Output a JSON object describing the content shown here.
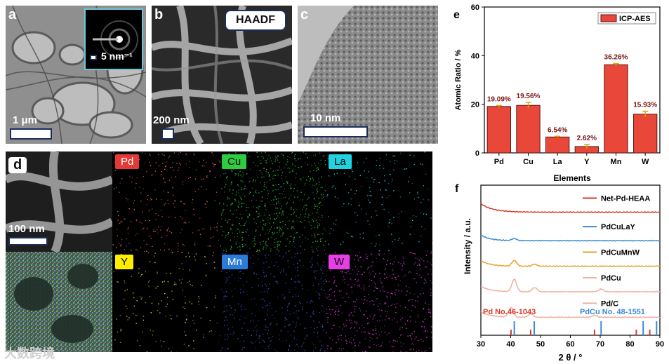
{
  "panels": {
    "a": {
      "label": "a",
      "scale": "1 μm",
      "inset_scale": "5 nm⁻¹"
    },
    "b": {
      "label": "b",
      "badge": "HAADF",
      "scale": "200 nm"
    },
    "c": {
      "label": "c",
      "scale": "10 nm"
    },
    "d": {
      "label": "d",
      "scale": "100 nm",
      "maps": [
        {
          "el": "Pd",
          "bg": "#e53935",
          "fg": "#ffffff",
          "dot": "#ff6a4d"
        },
        {
          "el": "Cu",
          "bg": "#2ecc40",
          "fg": "#000000",
          "dot": "#2ecc40"
        },
        {
          "el": "La",
          "bg": "#1fd3e0",
          "fg": "#000000",
          "dot": "#27d7e8"
        },
        {
          "el": "Y",
          "bg": "#ffee00",
          "fg": "#000000",
          "dot": "#f7e23b"
        },
        {
          "el": "Mn",
          "bg": "#2b7bd9",
          "fg": "#ffffff",
          "dot": "#3a5bdc"
        },
        {
          "el": "W",
          "bg": "#e83ee8",
          "fg": "#000000",
          "dot": "#e040e0"
        }
      ]
    },
    "e": {
      "label": "e"
    },
    "f": {
      "label": "f"
    }
  },
  "watermark": "大数跨境",
  "chart_data": [
    {
      "type": "bar",
      "panel": "e",
      "categories": [
        "Pd",
        "Cu",
        "La",
        "Y",
        "Mn",
        "W"
      ],
      "values": [
        19.09,
        19.56,
        6.54,
        2.62,
        36.26,
        15.93
      ],
      "errors": [
        0.4,
        1.2,
        0.3,
        0.8,
        0.5,
        1.2
      ],
      "data_labels": [
        "19.09%",
        "19.56%",
        "6.54%",
        "2.62%",
        "36.26%",
        "15.93%"
      ],
      "xlabel": "Elements",
      "ylabel": "Atomic Ratio / %",
      "ylim": [
        0,
        60
      ],
      "yticks": [
        0,
        20,
        40,
        60
      ],
      "legend": [
        "ICP-AES"
      ],
      "legend_position": "top-right",
      "bar_color": "#e8473a",
      "label_color": "#7a1616"
    },
    {
      "type": "line",
      "panel": "f",
      "xlabel": "2 θ / °",
      "ylabel": "Intensity / a.u.",
      "xlim": [
        30,
        90
      ],
      "xticks": [
        30,
        40,
        50,
        60,
        70,
        80,
        90
      ],
      "legend_position": "top-right",
      "series": [
        {
          "name": "Net-Pd-HEAA",
          "color": "#d63a2a",
          "offset": 0.82
        },
        {
          "name": "PdCuLaY",
          "color": "#3a8ad6",
          "offset": 0.63
        },
        {
          "name": "PdCuMnW",
          "color": "#e7a12a",
          "offset": 0.46
        },
        {
          "name": "PdCu",
          "color": "#f0b0a0",
          "offset": 0.29
        },
        {
          "name": "Pd/C",
          "color": "#f0b0a0",
          "offset": 0.12
        }
      ],
      "references": [
        {
          "name": "Pd No.46-1043",
          "color": "#d63a2a",
          "positions": [
            40.1,
            46.7,
            68.1,
            82.1,
            86.6
          ]
        },
        {
          "name": "PdCu No. 48-1551",
          "color": "#3a8ad6",
          "positions": [
            41.2,
            47.9,
            70.3,
            84.4,
            88.9
          ]
        }
      ]
    }
  ]
}
